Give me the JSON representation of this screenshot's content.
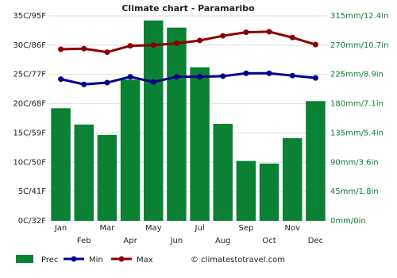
{
  "chart_data": {
    "type": "climate",
    "title": "Climate chart - Paramaribo",
    "categories": [
      "Jan",
      "Feb",
      "Mar",
      "Apr",
      "May",
      "Jun",
      "Jul",
      "Aug",
      "Sep",
      "Oct",
      "Nov",
      "Dec"
    ],
    "series": [
      {
        "name": "Prec",
        "color": "#0a8133",
        "axis": "y2",
        "kind": "bar",
        "values": [
          173,
          148,
          132,
          217,
          308,
          297,
          236,
          149,
          92,
          88,
          127,
          184
        ]
      },
      {
        "name": "Min",
        "color": "#00008b",
        "kind": "line",
        "values": [
          24.2,
          23.3,
          23.6,
          24.6,
          23.7,
          24.6,
          24.6,
          24.7,
          25.2,
          25.2,
          24.8,
          24.4
        ]
      },
      {
        "name": "Max",
        "color": "#8b0000",
        "kind": "line",
        "values": [
          29.3,
          29.4,
          28.8,
          29.9,
          30.0,
          30.3,
          30.8,
          31.6,
          32.2,
          32.3,
          31.3,
          30.1
        ]
      }
    ],
    "ylim": [
      0,
      35
    ],
    "yticks": [
      {
        "value": 0,
        "label": "0C/32F"
      },
      {
        "value": 5,
        "label": "5C/41F"
      },
      {
        "value": 10,
        "label": "10C/50F"
      },
      {
        "value": 15,
        "label": "15C/59F"
      },
      {
        "value": 20,
        "label": "20C/68F"
      },
      {
        "value": 25,
        "label": "25C/77F"
      },
      {
        "value": 30,
        "label": "30C/86F"
      },
      {
        "value": 35,
        "label": "35C/95F"
      }
    ],
    "y2lim": [
      0,
      315
    ],
    "y2ticks": [
      {
        "value": 0,
        "label": "0mm/0in"
      },
      {
        "value": 45,
        "label": "45mm/1.8in"
      },
      {
        "value": 90,
        "label": "90mm/3.6in"
      },
      {
        "value": 135,
        "label": "135mm/5.4in"
      },
      {
        "value": 180,
        "label": "180mm/7.1in"
      },
      {
        "value": 225,
        "label": "225mm/8.9in"
      },
      {
        "value": 270,
        "label": "270mm/10.7in"
      },
      {
        "value": 315,
        "label": "315mm/12.4in"
      }
    ],
    "grid": true,
    "legend": "bottom",
    "source": "© climatestotravel.com"
  }
}
